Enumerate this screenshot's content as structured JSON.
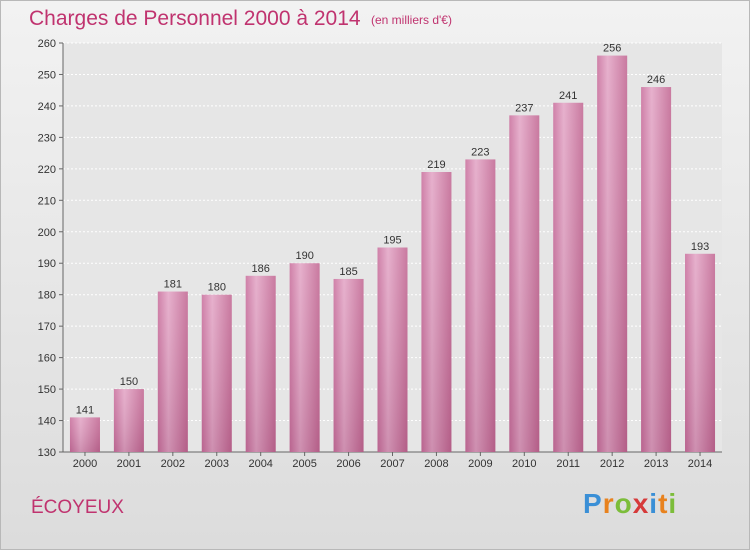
{
  "header": {
    "title": "Charges de Personnel 2000 à 2014",
    "subtitle": "(en milliers d'€)"
  },
  "footer": {
    "commune": "ÉCOYEUX",
    "brand_letters": [
      "P",
      "r",
      "o",
      "x",
      "i",
      "t",
      "i"
    ],
    "brand_colors": [
      "#3a8fd6",
      "#e8821e",
      "#7cbd3a",
      "#d63a3a",
      "#3a8fd6",
      "#e8821e",
      "#7cbd3a"
    ]
  },
  "chart_data": {
    "type": "bar",
    "title": "Charges de Personnel 2000 à 2014",
    "subtitle": "(en milliers d'€)",
    "categories": [
      "2000",
      "2001",
      "2002",
      "2003",
      "2004",
      "2005",
      "2006",
      "2007",
      "2008",
      "2009",
      "2010",
      "2011",
      "2012",
      "2013",
      "2014"
    ],
    "values": [
      141,
      150,
      181,
      180,
      186,
      190,
      185,
      195,
      219,
      223,
      237,
      241,
      256,
      246,
      193
    ],
    "ylim": [
      130,
      260
    ],
    "yticks": [
      130,
      140,
      150,
      160,
      170,
      180,
      190,
      200,
      210,
      220,
      230,
      240,
      250,
      260
    ],
    "grid": true,
    "bar_color": "#d98bb4"
  }
}
